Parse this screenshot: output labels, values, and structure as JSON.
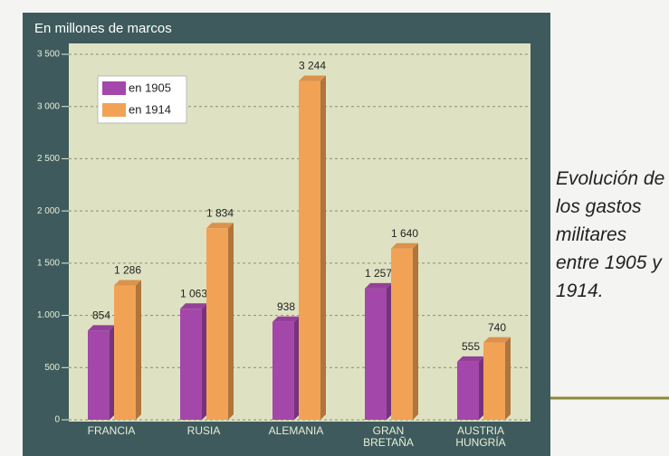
{
  "chart_data": {
    "type": "bar",
    "axis_label": "En millones de marcos",
    "caption": "Evolución de los gastos militares entre 1905 y 1914.",
    "categories": [
      "FRANCIA",
      "RUSIA",
      "ALEMANIA",
      "GRAN BRETAÑA",
      "AUSTRIA HUNGRÍA"
    ],
    "series": [
      {
        "name": "en 1905",
        "color": "#a447aa",
        "values": [
          854,
          1063,
          938,
          1257,
          555
        ],
        "value_labels": [
          "854",
          "1 063",
          "938",
          "1 257",
          "555"
        ]
      },
      {
        "name": "en 1914",
        "color": "#f2a255",
        "values": [
          1286,
          1834,
          3244,
          1640,
          740
        ],
        "value_labels": [
          "1 286",
          "1 834",
          "3 244",
          "1 640",
          "740"
        ]
      }
    ],
    "ylim": [
      0,
      3500
    ],
    "yticks": [
      0,
      500,
      {
        "value": 1000,
        "label": "1.000"
      },
      {
        "value": 1500,
        "label": "1 500"
      },
      {
        "value": 2000,
        "label": "2 000"
      },
      {
        "value": 2500,
        "label": "2 500"
      },
      {
        "value": 3000,
        "label": "3 000"
      },
      {
        "value": 3500,
        "label": "3 500"
      }
    ],
    "grid": true
  }
}
